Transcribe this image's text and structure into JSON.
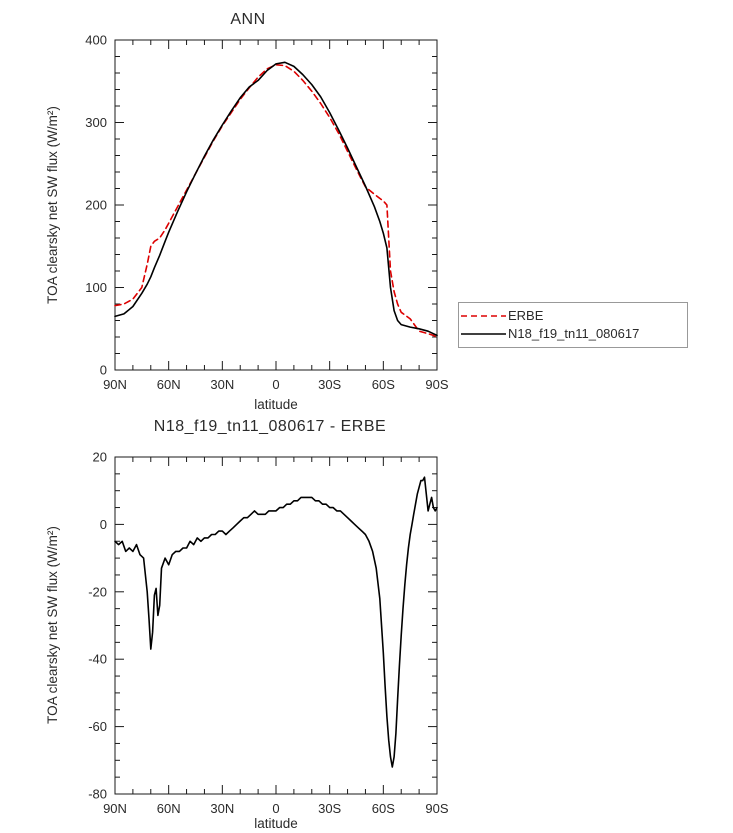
{
  "figure": {
    "background": "#ffffff",
    "axis_color": "#1a1a1a",
    "text_color": "#2b2b2b"
  },
  "chart_data": [
    {
      "type": "line",
      "title": "ANN",
      "xlabel": "latitude",
      "ylabel": "TOA clearsky net SW flux (W/m²)",
      "xlim": [
        90,
        -90
      ],
      "ylim": [
        0,
        400
      ],
      "grid": false,
      "legend_position": "right-outside",
      "x_ticks": {
        "values": [
          90,
          60,
          30,
          0,
          -30,
          -60,
          -90
        ],
        "labels": [
          "90N",
          "60N",
          "30N",
          "0",
          "30S",
          "60S",
          "90S"
        ]
      },
      "y_ticks": {
        "values": [
          0,
          100,
          200,
          300,
          400
        ],
        "labels": [
          "0",
          "100",
          "200",
          "300",
          "400"
        ]
      },
      "x_minor_step": 10,
      "y_minor_step": 20,
      "x": [
        90,
        85,
        80,
        75,
        72,
        70,
        68,
        65,
        62,
        60,
        55,
        50,
        45,
        40,
        35,
        30,
        25,
        20,
        15,
        10,
        5,
        0,
        -5,
        -10,
        -15,
        -20,
        -25,
        -30,
        -35,
        -40,
        -45,
        -50,
        -55,
        -58,
        -60,
        -62,
        -64,
        -66,
        -68,
        -70,
        -75,
        -80,
        -85,
        -88,
        -90
      ],
      "series": [
        {
          "name": "ERBE",
          "color": "#dd0000",
          "style": "dashed",
          "values": [
            78,
            80,
            86,
            100,
            128,
            150,
            156,
            160,
            170,
            178,
            198,
            218,
            238,
            258,
            278,
            296,
            312,
            328,
            342,
            355,
            365,
            370,
            369,
            362,
            351,
            338,
            323,
            306,
            287,
            265,
            243,
            222,
            213,
            208,
            205,
            200,
            120,
            95,
            80,
            70,
            62,
            47,
            44,
            42,
            40
          ]
        },
        {
          "name": "N18_f19_tn11_080617",
          "color": "#000000",
          "style": "solid",
          "values": [
            65,
            68,
            77,
            93,
            104,
            113,
            124,
            139,
            156,
            167,
            192,
            216,
            238,
            259,
            279,
            297,
            314,
            330,
            343,
            351,
            363,
            371,
            373,
            368,
            358,
            346,
            331,
            312,
            291,
            269,
            246,
            223,
            198,
            180,
            166,
            148,
            100,
            72,
            60,
            55,
            52,
            50,
            47,
            44,
            42
          ]
        }
      ]
    },
    {
      "type": "line",
      "title": "N18_f19_tn11_080617 - ERBE",
      "xlabel": "latitude",
      "ylabel": "TOA clearsky net SW flux (W/m²)",
      "xlim": [
        90,
        -90
      ],
      "ylim": [
        -80,
        20
      ],
      "grid": false,
      "x_ticks": {
        "values": [
          90,
          60,
          30,
          0,
          -30,
          -60,
          -90
        ],
        "labels": [
          "90N",
          "60N",
          "30N",
          "0",
          "30S",
          "60S",
          "90S"
        ]
      },
      "y_ticks": {
        "values": [
          -80,
          -60,
          -40,
          -20,
          0,
          20
        ],
        "labels": [
          "-80",
          "-60",
          "-40",
          "-20",
          "0",
          "20"
        ]
      },
      "x_minor_step": 10,
      "y_minor_step": 5,
      "x": [
        90,
        88,
        86,
        84,
        82,
        80,
        78,
        76,
        74,
        72,
        71,
        70,
        69,
        68,
        67,
        66,
        65,
        64,
        62,
        60,
        58,
        56,
        54,
        52,
        50,
        48,
        46,
        44,
        42,
        40,
        38,
        36,
        34,
        32,
        30,
        28,
        26,
        24,
        22,
        20,
        18,
        16,
        14,
        12,
        10,
        8,
        6,
        4,
        2,
        0,
        -2,
        -4,
        -6,
        -8,
        -10,
        -12,
        -14,
        -16,
        -18,
        -20,
        -22,
        -24,
        -26,
        -28,
        -30,
        -32,
        -34,
        -36,
        -38,
        -40,
        -42,
        -44,
        -46,
        -48,
        -50,
        -52,
        -54,
        -56,
        -58,
        -60,
        -61,
        -62,
        -63,
        -64,
        -65,
        -66,
        -67,
        -68,
        -69,
        -70,
        -71,
        -72,
        -73,
        -74,
        -75,
        -76,
        -77,
        -78,
        -79,
        -80,
        -81,
        -82,
        -83,
        -84,
        -85,
        -86,
        -87,
        -88,
        -89,
        -90
      ],
      "series": [
        {
          "name": "N18_f19_tn11_080617 - ERBE",
          "color": "#000000",
          "style": "solid",
          "values": [
            -5,
            -6,
            -5,
            -8,
            -7,
            -8,
            -6,
            -9,
            -10,
            -20,
            -28,
            -37,
            -32,
            -21,
            -19,
            -27,
            -24,
            -13,
            -10,
            -12,
            -9,
            -8,
            -8,
            -7,
            -7,
            -5,
            -6,
            -4,
            -5,
            -4,
            -4,
            -3,
            -3,
            -2,
            -2,
            -3,
            -2,
            -1,
            0,
            1,
            2,
            2,
            3,
            4,
            3,
            3,
            3,
            4,
            4,
            4,
            5,
            5,
            6,
            6,
            7,
            7,
            8,
            8,
            8,
            8,
            7,
            7,
            6,
            6,
            5,
            5,
            4,
            4,
            3,
            2,
            1,
            0,
            -1,
            -2,
            -3,
            -5,
            -8,
            -13,
            -22,
            -38,
            -48,
            -57,
            -64,
            -69,
            -72,
            -69,
            -62,
            -52,
            -42,
            -33,
            -25,
            -18,
            -12,
            -7,
            -3,
            0,
            3,
            6,
            9,
            11,
            13,
            13,
            14,
            9,
            4,
            6,
            8,
            5,
            4,
            5
          ]
        }
      ]
    }
  ]
}
